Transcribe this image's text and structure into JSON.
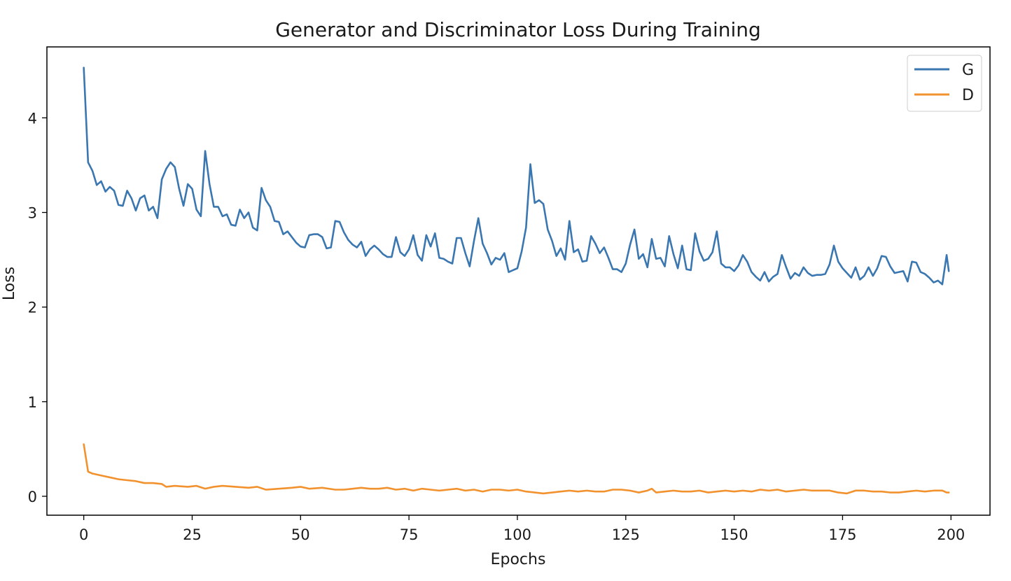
{
  "chart_data": {
    "type": "line",
    "title": "Generator and Discriminator Loss During Training",
    "xlabel": "Epochs",
    "ylabel": "Loss",
    "xlim": [
      -8.5,
      209
    ],
    "ylim": [
      -0.2,
      4.75
    ],
    "xticks": [
      0,
      25,
      50,
      75,
      100,
      125,
      150,
      175,
      200
    ],
    "yticks": [
      0,
      1,
      2,
      3,
      4
    ],
    "grid": false,
    "legend_position": "top-right",
    "series": [
      {
        "name": "G",
        "color": "#3a76b0",
        "keypoints": [
          [
            0,
            4.53
          ],
          [
            1,
            3.53
          ],
          [
            2,
            3.44
          ],
          [
            3,
            3.29
          ],
          [
            4,
            3.33
          ],
          [
            5,
            3.22
          ],
          [
            6,
            3.27
          ],
          [
            7,
            3.23
          ],
          [
            8,
            3.08
          ],
          [
            9,
            3.07
          ],
          [
            10,
            3.23
          ],
          [
            11,
            3.15
          ],
          [
            12,
            3.02
          ],
          [
            13,
            3.15
          ],
          [
            14,
            3.18
          ],
          [
            15,
            3.02
          ],
          [
            16,
            3.06
          ],
          [
            17,
            2.94
          ],
          [
            18,
            3.35
          ],
          [
            19,
            3.46
          ],
          [
            20,
            3.53
          ],
          [
            21,
            3.48
          ],
          [
            22,
            3.25
          ],
          [
            23,
            3.07
          ],
          [
            24,
            3.3
          ],
          [
            25,
            3.25
          ],
          [
            26,
            3.03
          ],
          [
            27,
            2.96
          ],
          [
            28,
            3.65
          ],
          [
            29,
            3.3
          ],
          [
            30,
            3.06
          ],
          [
            31,
            3.06
          ],
          [
            32,
            2.96
          ],
          [
            33,
            2.98
          ],
          [
            34,
            2.87
          ],
          [
            35,
            2.86
          ],
          [
            36,
            3.03
          ],
          [
            37,
            2.94
          ],
          [
            38,
            3.0
          ],
          [
            39,
            2.84
          ],
          [
            40,
            2.81
          ],
          [
            41,
            3.26
          ],
          [
            42,
            3.13
          ],
          [
            43,
            3.06
          ],
          [
            44,
            2.91
          ],
          [
            45,
            2.9
          ],
          [
            46,
            2.77
          ],
          [
            47,
            2.8
          ],
          [
            48,
            2.74
          ],
          [
            49,
            2.68
          ],
          [
            50,
            2.64
          ],
          [
            51,
            2.63
          ],
          [
            52,
            2.76
          ],
          [
            53,
            2.77
          ],
          [
            54,
            2.77
          ],
          [
            55,
            2.74
          ],
          [
            56,
            2.62
          ],
          [
            57,
            2.63
          ],
          [
            58,
            2.91
          ],
          [
            59,
            2.9
          ],
          [
            60,
            2.79
          ],
          [
            61,
            2.71
          ],
          [
            62,
            2.66
          ],
          [
            63,
            2.63
          ],
          [
            64,
            2.69
          ],
          [
            65,
            2.54
          ],
          [
            66,
            2.61
          ],
          [
            67,
            2.65
          ],
          [
            68,
            2.61
          ],
          [
            69,
            2.56
          ],
          [
            70,
            2.53
          ],
          [
            71,
            2.53
          ],
          [
            72,
            2.74
          ],
          [
            73,
            2.58
          ],
          [
            74,
            2.54
          ],
          [
            75,
            2.61
          ],
          [
            76,
            2.76
          ],
          [
            77,
            2.55
          ],
          [
            78,
            2.49
          ],
          [
            79,
            2.76
          ],
          [
            80,
            2.64
          ],
          [
            81,
            2.78
          ],
          [
            82,
            2.52
          ],
          [
            83,
            2.51
          ],
          [
            84,
            2.48
          ],
          [
            85,
            2.46
          ],
          [
            86,
            2.73
          ],
          [
            87,
            2.73
          ],
          [
            88,
            2.57
          ],
          [
            89,
            2.43
          ],
          [
            90,
            2.7
          ],
          [
            91,
            2.94
          ],
          [
            92,
            2.67
          ],
          [
            93,
            2.57
          ],
          [
            94,
            2.45
          ],
          [
            95,
            2.52
          ],
          [
            96,
            2.5
          ],
          [
            97,
            2.57
          ],
          [
            98,
            2.37
          ],
          [
            99,
            2.39
          ],
          [
            100,
            2.41
          ],
          [
            101,
            2.59
          ],
          [
            102,
            2.84
          ],
          [
            103,
            3.51
          ],
          [
            104,
            3.1
          ],
          [
            105,
            3.13
          ],
          [
            106,
            3.09
          ],
          [
            107,
            2.82
          ],
          [
            108,
            2.7
          ],
          [
            109,
            2.54
          ],
          [
            110,
            2.62
          ],
          [
            111,
            2.5
          ],
          [
            112,
            2.91
          ],
          [
            113,
            2.58
          ],
          [
            114,
            2.61
          ],
          [
            115,
            2.48
          ],
          [
            116,
            2.49
          ],
          [
            117,
            2.75
          ],
          [
            118,
            2.67
          ],
          [
            119,
            2.57
          ],
          [
            120,
            2.63
          ],
          [
            121,
            2.52
          ],
          [
            122,
            2.4
          ],
          [
            123,
            2.4
          ],
          [
            124,
            2.37
          ],
          [
            125,
            2.46
          ],
          [
            126,
            2.66
          ],
          [
            127,
            2.82
          ],
          [
            128,
            2.51
          ],
          [
            129,
            2.56
          ],
          [
            130,
            2.42
          ],
          [
            131,
            2.72
          ],
          [
            132,
            2.51
          ],
          [
            133,
            2.52
          ],
          [
            134,
            2.43
          ],
          [
            135,
            2.75
          ],
          [
            136,
            2.56
          ],
          [
            137,
            2.41
          ],
          [
            138,
            2.65
          ],
          [
            139,
            2.4
          ],
          [
            140,
            2.39
          ],
          [
            141,
            2.78
          ],
          [
            142,
            2.59
          ],
          [
            143,
            2.49
          ],
          [
            144,
            2.51
          ],
          [
            145,
            2.58
          ],
          [
            146,
            2.8
          ],
          [
            147,
            2.46
          ],
          [
            148,
            2.42
          ],
          [
            149,
            2.42
          ],
          [
            150,
            2.38
          ],
          [
            151,
            2.44
          ],
          [
            152,
            2.55
          ],
          [
            153,
            2.48
          ],
          [
            154,
            2.37
          ],
          [
            155,
            2.32
          ],
          [
            156,
            2.28
          ],
          [
            157,
            2.37
          ],
          [
            158,
            2.27
          ],
          [
            159,
            2.32
          ],
          [
            160,
            2.35
          ],
          [
            161,
            2.55
          ],
          [
            162,
            2.42
          ],
          [
            163,
            2.3
          ],
          [
            164,
            2.36
          ],
          [
            165,
            2.33
          ],
          [
            166,
            2.42
          ],
          [
            167,
            2.36
          ],
          [
            168,
            2.33
          ],
          [
            169,
            2.34
          ],
          [
            170,
            2.34
          ],
          [
            171,
            2.35
          ],
          [
            172,
            2.45
          ],
          [
            173,
            2.65
          ],
          [
            174,
            2.48
          ],
          [
            175,
            2.41
          ],
          [
            176,
            2.36
          ],
          [
            177,
            2.31
          ],
          [
            178,
            2.42
          ],
          [
            179,
            2.29
          ],
          [
            180,
            2.33
          ],
          [
            181,
            2.42
          ],
          [
            182,
            2.33
          ],
          [
            183,
            2.41
          ],
          [
            184,
            2.54
          ],
          [
            185,
            2.53
          ],
          [
            186,
            2.43
          ],
          [
            187,
            2.36
          ],
          [
            188,
            2.37
          ],
          [
            189,
            2.38
          ],
          [
            190,
            2.27
          ],
          [
            191,
            2.48
          ],
          [
            192,
            2.47
          ],
          [
            193,
            2.37
          ],
          [
            194,
            2.35
          ],
          [
            195,
            2.31
          ],
          [
            196,
            2.26
          ],
          [
            197,
            2.28
          ],
          [
            198,
            2.24
          ],
          [
            199,
            2.55
          ],
          [
            199.5,
            2.38
          ]
        ]
      },
      {
        "name": "D",
        "color": "#f2922f",
        "keypoints": [
          [
            0,
            0.55
          ],
          [
            1,
            0.26
          ],
          [
            2,
            0.24
          ],
          [
            4,
            0.22
          ],
          [
            6,
            0.2
          ],
          [
            8,
            0.18
          ],
          [
            10,
            0.17
          ],
          [
            12,
            0.16
          ],
          [
            14,
            0.14
          ],
          [
            16,
            0.14
          ],
          [
            18,
            0.13
          ],
          [
            19,
            0.1
          ],
          [
            21,
            0.11
          ],
          [
            24,
            0.1
          ],
          [
            26,
            0.11
          ],
          [
            28,
            0.08
          ],
          [
            30,
            0.1
          ],
          [
            32,
            0.11
          ],
          [
            35,
            0.1
          ],
          [
            38,
            0.09
          ],
          [
            40,
            0.1
          ],
          [
            42,
            0.07
          ],
          [
            45,
            0.08
          ],
          [
            48,
            0.09
          ],
          [
            50,
            0.1
          ],
          [
            52,
            0.08
          ],
          [
            55,
            0.09
          ],
          [
            58,
            0.07
          ],
          [
            60,
            0.07
          ],
          [
            62,
            0.08
          ],
          [
            64,
            0.09
          ],
          [
            66,
            0.08
          ],
          [
            68,
            0.08
          ],
          [
            70,
            0.09
          ],
          [
            72,
            0.07
          ],
          [
            74,
            0.08
          ],
          [
            76,
            0.06
          ],
          [
            78,
            0.08
          ],
          [
            80,
            0.07
          ],
          [
            82,
            0.06
          ],
          [
            84,
            0.07
          ],
          [
            86,
            0.08
          ],
          [
            88,
            0.06
          ],
          [
            90,
            0.07
          ],
          [
            92,
            0.05
          ],
          [
            94,
            0.07
          ],
          [
            96,
            0.07
          ],
          [
            98,
            0.06
          ],
          [
            100,
            0.07
          ],
          [
            102,
            0.05
          ],
          [
            104,
            0.04
          ],
          [
            106,
            0.03
          ],
          [
            108,
            0.04
          ],
          [
            110,
            0.05
          ],
          [
            112,
            0.06
          ],
          [
            114,
            0.05
          ],
          [
            116,
            0.06
          ],
          [
            118,
            0.05
          ],
          [
            120,
            0.05
          ],
          [
            122,
            0.07
          ],
          [
            124,
            0.07
          ],
          [
            126,
            0.06
          ],
          [
            128,
            0.04
          ],
          [
            130,
            0.06
          ],
          [
            131,
            0.08
          ],
          [
            132,
            0.04
          ],
          [
            134,
            0.05
          ],
          [
            136,
            0.06
          ],
          [
            138,
            0.05
          ],
          [
            140,
            0.05
          ],
          [
            142,
            0.06
          ],
          [
            144,
            0.04
          ],
          [
            146,
            0.05
          ],
          [
            148,
            0.06
          ],
          [
            150,
            0.05
          ],
          [
            152,
            0.06
          ],
          [
            154,
            0.05
          ],
          [
            156,
            0.07
          ],
          [
            158,
            0.06
          ],
          [
            160,
            0.07
          ],
          [
            162,
            0.05
          ],
          [
            164,
            0.06
          ],
          [
            166,
            0.07
          ],
          [
            168,
            0.06
          ],
          [
            170,
            0.06
          ],
          [
            172,
            0.06
          ],
          [
            174,
            0.04
          ],
          [
            176,
            0.03
          ],
          [
            178,
            0.06
          ],
          [
            180,
            0.06
          ],
          [
            182,
            0.05
          ],
          [
            184,
            0.05
          ],
          [
            186,
            0.04
          ],
          [
            188,
            0.04
          ],
          [
            190,
            0.05
          ],
          [
            192,
            0.06
          ],
          [
            194,
            0.05
          ],
          [
            196,
            0.06
          ],
          [
            198,
            0.06
          ],
          [
            199,
            0.04
          ],
          [
            199.5,
            0.04
          ]
        ]
      }
    ]
  }
}
